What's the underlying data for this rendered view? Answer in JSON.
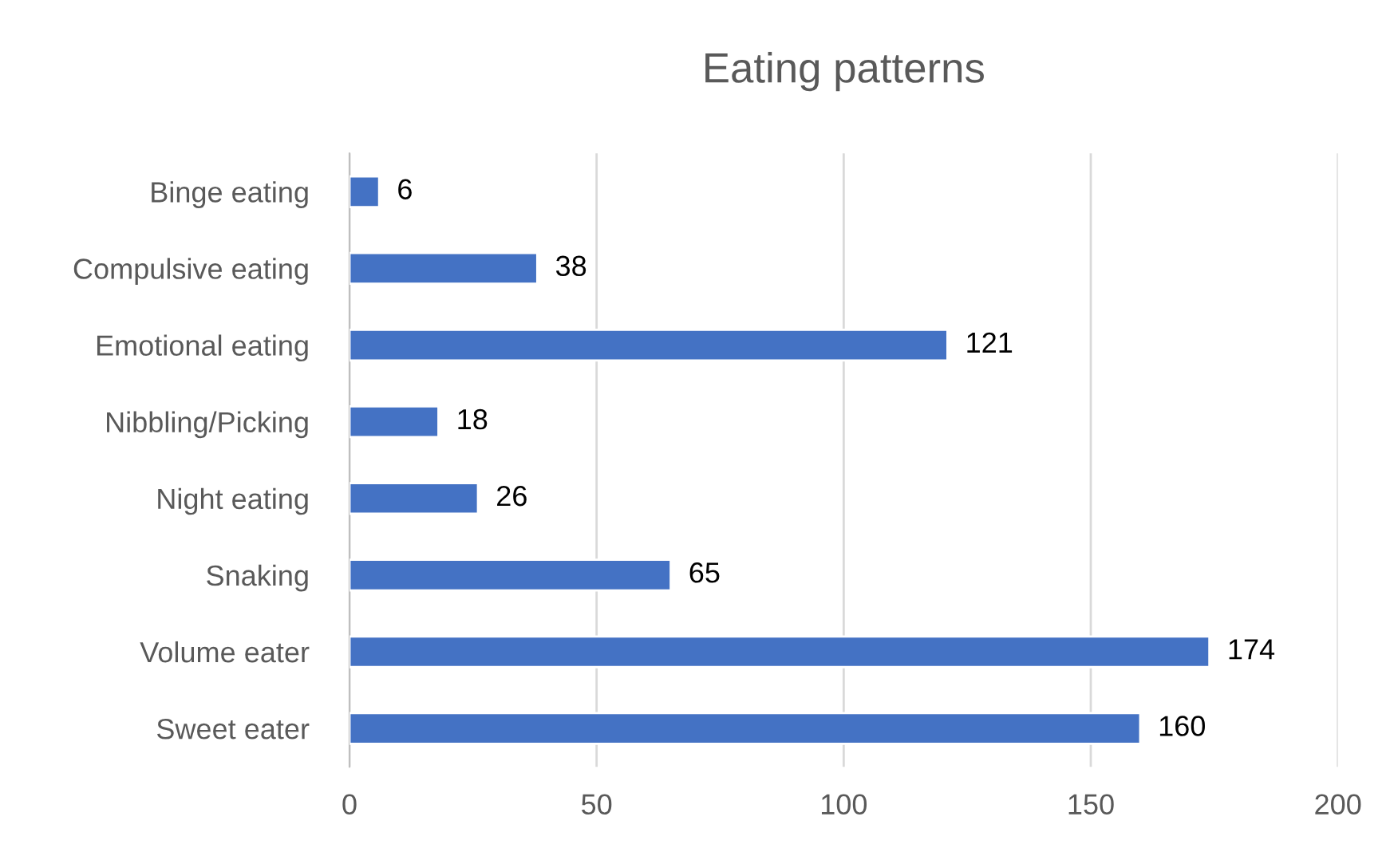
{
  "chart_data": {
    "type": "bar",
    "orientation": "horizontal",
    "title": "Eating patterns",
    "categories": [
      "Binge eating",
      "Compulsive eating",
      "Emotional eating",
      "Nibbling/Picking",
      "Night eating",
      "Snaking",
      "Volume eater",
      "Sweet eater"
    ],
    "values": [
      6,
      38,
      121,
      18,
      26,
      65,
      174,
      160
    ],
    "color": "#4472c4",
    "xlim": [
      0,
      200
    ],
    "xticks": [
      0,
      50,
      100,
      150,
      200
    ],
    "grid": "x",
    "data_labels": true,
    "legend": false
  }
}
